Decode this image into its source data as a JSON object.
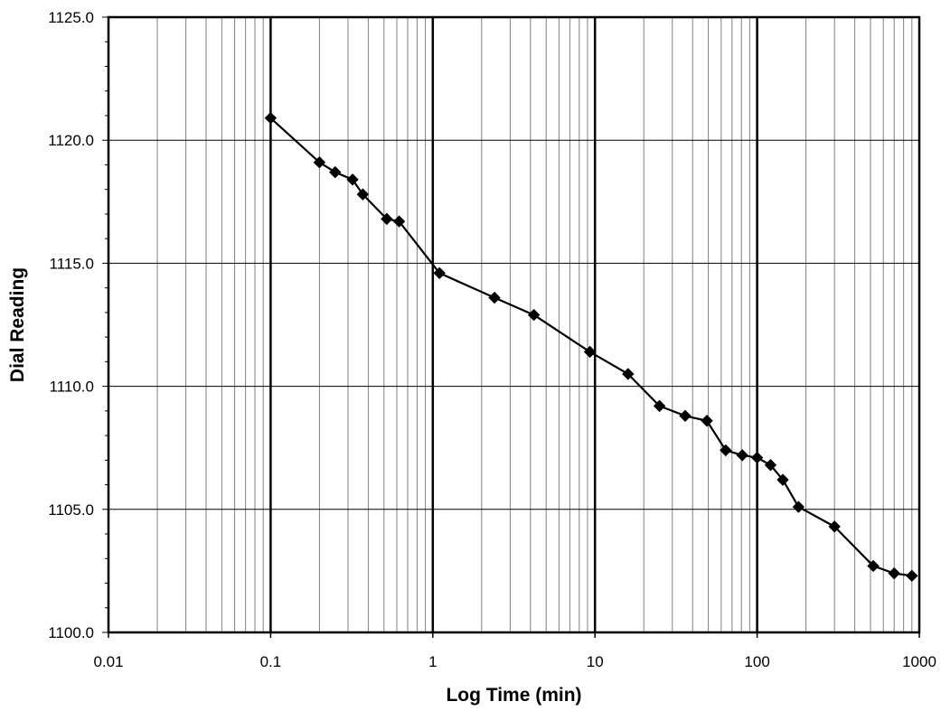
{
  "chart_data": {
    "type": "line",
    "title": "",
    "xlabel": "Log Time (min)",
    "ylabel": "Dial Reading",
    "x_scale": "log",
    "xlim": [
      0.01,
      1000
    ],
    "ylim": [
      1100.0,
      1125.0
    ],
    "x_ticks": [
      "0.01",
      "0.1",
      "1",
      "10",
      "100",
      "1000"
    ],
    "y_ticks": [
      "1100.0",
      "1105.0",
      "1110.0",
      "1115.0",
      "1120.0",
      "1125.0"
    ],
    "grid": true,
    "legend": "none",
    "colors": {
      "line": "#000000",
      "marker": "#000000",
      "major_grid": "#000000",
      "minor_grid": "#808080",
      "background": "#ffffff"
    },
    "series": [
      {
        "marker": "diamond",
        "x": [
          0.1,
          0.2,
          0.25,
          0.32,
          0.37,
          0.52,
          0.62,
          1.1,
          2.4,
          4.2,
          9.3,
          16,
          25,
          36,
          49,
          64,
          81,
          100,
          121,
          144,
          180,
          300,
          520,
          700,
          900
        ],
        "y": [
          1120.9,
          1119.1,
          1118.7,
          1118.4,
          1117.8,
          1116.8,
          1116.7,
          1114.6,
          1113.6,
          1112.9,
          1111.4,
          1110.5,
          1109.2,
          1108.8,
          1108.6,
          1107.4,
          1107.2,
          1107.1,
          1106.8,
          1106.2,
          1105.1,
          1104.3,
          1102.7,
          1102.4,
          1102.3
        ]
      }
    ]
  }
}
